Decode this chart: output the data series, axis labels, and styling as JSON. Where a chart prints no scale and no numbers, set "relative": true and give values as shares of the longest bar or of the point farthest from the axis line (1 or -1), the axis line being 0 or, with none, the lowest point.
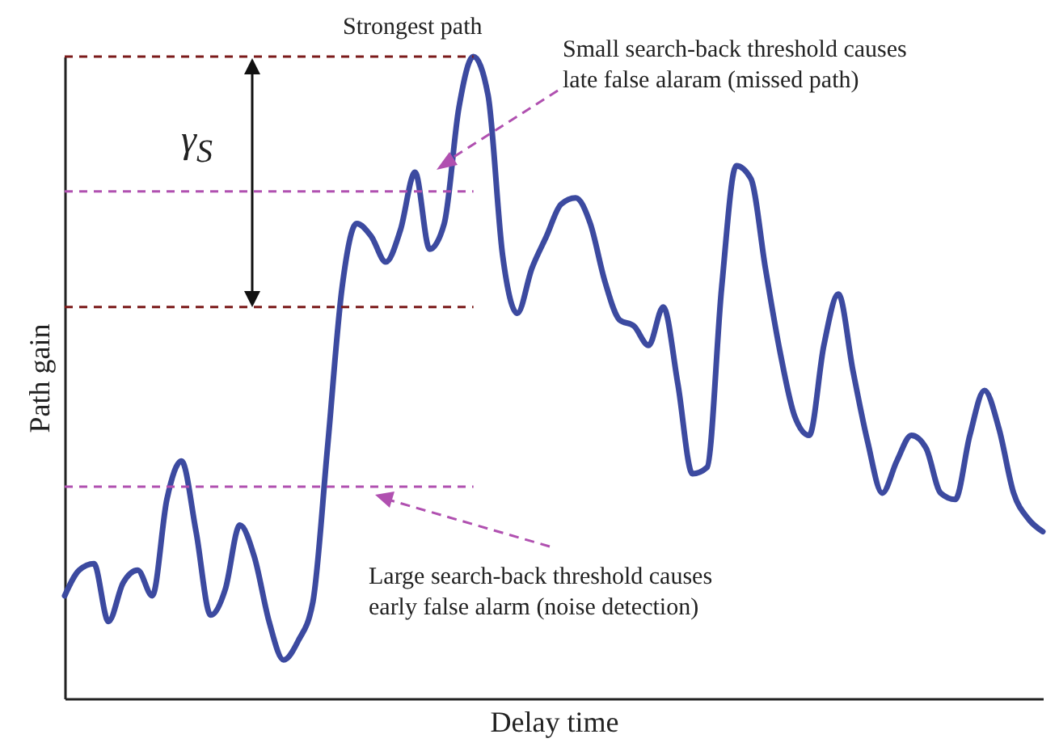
{
  "chart_data": {
    "type": "line",
    "relative": true,
    "xlabel": "Delay time",
    "ylabel": "Path gain",
    "categories": [
      null,
      null,
      null,
      null,
      null,
      null,
      null,
      null,
      null,
      null,
      null,
      null,
      null,
      null,
      null,
      null,
      null,
      null,
      null,
      null,
      null,
      null,
      null,
      null,
      null,
      null,
      null,
      null,
      null,
      null,
      null,
      null,
      null,
      null,
      null,
      null,
      null,
      null,
      null,
      null,
      null,
      null,
      null,
      null,
      null,
      null,
      null,
      null,
      null,
      null,
      null,
      null,
      null,
      null,
      null,
      null,
      null,
      null,
      null,
      null,
      null,
      null,
      null,
      null,
      null,
      null,
      null,
      null
    ],
    "series": [
      {
        "color": "#3c4aa0",
        "values": [
          0.16,
          0.2,
          0.21,
          0.12,
          0.18,
          0.2,
          0.16,
          0.31,
          0.37,
          0.26,
          0.13,
          0.17,
          0.27,
          0.22,
          0.12,
          0.06,
          0.09,
          0.15,
          0.39,
          0.64,
          0.74,
          0.72,
          0.68,
          0.73,
          0.82,
          0.7,
          0.74,
          0.92,
          1,
          0.94,
          0.69,
          0.6,
          0.67,
          0.72,
          0.77,
          0.78,
          0.74,
          0.65,
          0.59,
          0.58,
          0.55,
          0.61,
          0.49,
          0.35,
          0.36,
          0.64,
          0.83,
          0.81,
          0.67,
          0.54,
          0.44,
          0.41,
          0.55,
          0.63,
          0.51,
          0.4,
          0.32,
          0.37,
          0.41,
          0.39,
          0.32,
          0.31,
          0.41,
          0.48,
          0.42,
          0.32,
          0.28,
          0.26
        ]
      }
    ],
    "marker": "none",
    "line_style": "solid",
    "grid": false,
    "ref_lines": [
      {
        "axis": "y",
        "value": 1,
        "label": null,
        "color": "#7b1a1a",
        "line_style": "dashed"
      },
      {
        "axis": "y",
        "value": 0.61,
        "label": null,
        "color": "#7b1a1a",
        "line_style": "dashed"
      },
      {
        "axis": "y",
        "value": 0.79,
        "label": null,
        "color": "#b050b0",
        "line_style": "dashed"
      },
      {
        "axis": "y",
        "value": 0.33,
        "label": null,
        "color": "#b050b0",
        "line_style": "dashed"
      }
    ],
    "annotations": [
      "Strongest path",
      "Small search-back threshold causes\nlate false alaram (missed path)",
      "Large search-back threshold causes\nearly false alarm (noise detection)",
      "γ$_{S}$"
    ]
  }
}
